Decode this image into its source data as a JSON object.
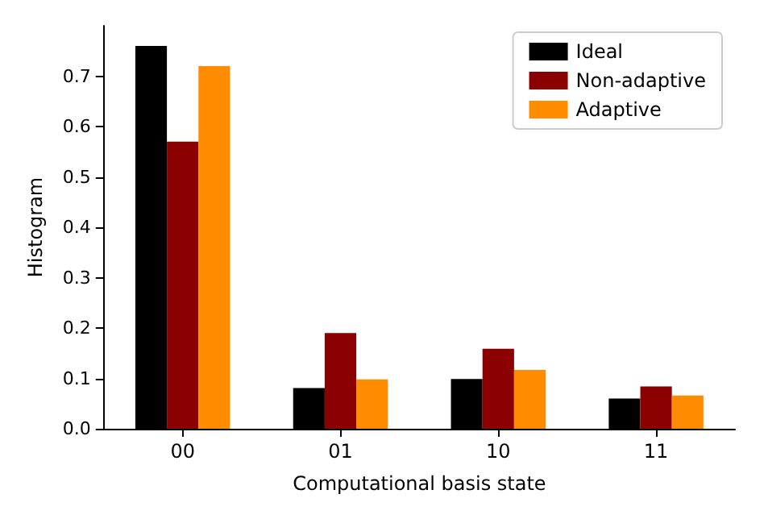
{
  "chart_data": {
    "type": "bar",
    "xlabel": "Computational basis state",
    "ylabel": "Histogram",
    "categories": [
      "00",
      "01",
      "10",
      "11"
    ],
    "series": [
      {
        "name": "Ideal",
        "color": "#000000",
        "values": [
          0.76,
          0.081,
          0.099,
          0.06
        ]
      },
      {
        "name": "Non-adaptive",
        "color": "#8b0000",
        "values": [
          0.57,
          0.19,
          0.159,
          0.084
        ]
      },
      {
        "name": "Adaptive",
        "color": "#ff8c00",
        "values": [
          0.72,
          0.098,
          0.117,
          0.066
        ]
      }
    ],
    "ylim": [
      0,
      0.8
    ],
    "yticks": [
      {
        "value": 0,
        "label": "0.0"
      },
      0.1,
      0.2,
      0.3,
      0.4,
      0.5,
      0.6,
      0.7
    ],
    "grid": false,
    "legend": "top right"
  }
}
